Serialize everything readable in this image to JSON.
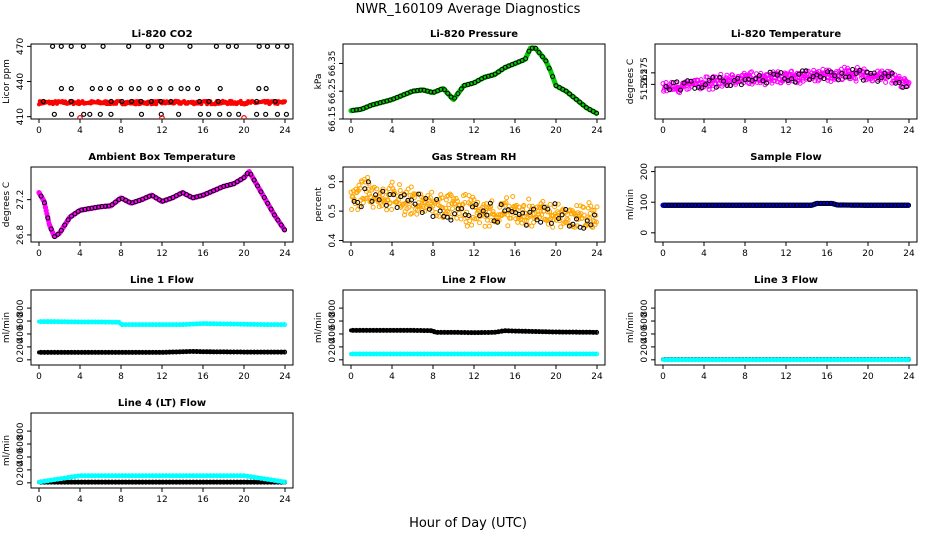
{
  "figure": {
    "title": "NWR_160109  Average Diagnostics",
    "xlabel": "Hour of Day (UTC)"
  },
  "colors": {
    "co2_main": "#ff0000",
    "pressure": "#00cc00",
    "temperature": "#ff00ff",
    "rh": "#ffa500",
    "sample_flow": "#0000cc",
    "flow_primary": "#00ffff",
    "flow_secondary": "#000000"
  },
  "chart_data": [
    {
      "type": "scatter",
      "title": "Li-820 CO2",
      "ylabel": "Licor ppm",
      "xlim": [
        0,
        24
      ],
      "xticks": [
        0,
        4,
        8,
        12,
        16,
        20,
        24
      ],
      "ylim": [
        408,
        472
      ],
      "yticks": [
        410,
        440,
        470
      ],
      "series": [
        {
          "name": "",
          "color": "#ff0000",
          "style": "dense-band",
          "x": [
            0,
            24
          ],
          "y": [
            422,
            422
          ],
          "spread": 1.5
        },
        {
          "name": "",
          "color": "#000000",
          "style": "open-circle-levels",
          "levels": [
            470,
            434,
            423,
            412
          ]
        },
        {
          "name": "",
          "color": "#ff0000",
          "style": "open-circle",
          "x": [
            4,
            12,
            20
          ],
          "y": [
            409,
            409,
            409
          ]
        }
      ]
    },
    {
      "type": "line",
      "title": "Li-820 Pressure",
      "ylabel": "kPa",
      "xlim": [
        0,
        24
      ],
      "xticks": [
        0,
        4,
        8,
        12,
        16,
        20,
        24
      ],
      "ylim": [
        66.15,
        66.42
      ],
      "yticks": [
        66.15,
        66.25,
        66.35
      ],
      "series": [
        {
          "name": "",
          "color": "#00cc00",
          "x": [
            0,
            1,
            2,
            3,
            4,
            5,
            6,
            7,
            8,
            9,
            10,
            11,
            12,
            13,
            14,
            15,
            16,
            17,
            17.5,
            18,
            19,
            19.5,
            20,
            21,
            22,
            23,
            24
          ],
          "y": [
            66.18,
            66.185,
            66.2,
            66.21,
            66.22,
            66.235,
            66.25,
            66.255,
            66.245,
            66.26,
            66.22,
            66.27,
            66.28,
            66.3,
            66.31,
            66.335,
            66.35,
            66.365,
            66.405,
            66.405,
            66.36,
            66.32,
            66.27,
            66.25,
            66.22,
            66.19,
            66.17
          ]
        }
      ]
    },
    {
      "type": "scatter",
      "title": "Li-820 Temperature",
      "ylabel": "degrees C",
      "xlim": [
        0,
        24
      ],
      "xticks": [
        0,
        4,
        8,
        12,
        16,
        20,
        24
      ],
      "ylim": [
        51.235,
        51.3
      ],
      "yticks": [
        51.265,
        51.275
      ],
      "series": [
        {
          "name": "",
          "color": "#ff00ff",
          "x": [
            0,
            2,
            4,
            6,
            8,
            10,
            12,
            14,
            16,
            18,
            20,
            22,
            24
          ],
          "y": [
            51.262,
            51.263,
            51.266,
            51.268,
            51.27,
            51.271,
            51.271,
            51.272,
            51.273,
            51.274,
            51.273,
            51.272,
            51.265
          ],
          "spread": 0.007
        }
      ]
    },
    {
      "type": "line",
      "title": "Ambient Box Temperature",
      "ylabel": "degrees C",
      "xlim": [
        0,
        24
      ],
      "xticks": [
        0,
        4,
        8,
        12,
        16,
        20,
        24
      ],
      "ylim": [
        26.72,
        27.57
      ],
      "yticks": [
        26.8,
        27.2
      ],
      "series": [
        {
          "name": "",
          "color": "#ff00ff",
          "x": [
            0,
            0.5,
            1,
            1.5,
            2,
            3,
            4,
            5,
            6,
            7,
            8,
            9,
            10,
            11,
            12,
            13,
            14,
            15,
            16,
            17,
            18,
            19,
            20,
            20.5,
            21,
            22,
            23,
            24
          ],
          "y": [
            27.28,
            27.18,
            26.92,
            26.78,
            26.82,
            27.0,
            27.08,
            27.1,
            27.12,
            27.13,
            27.22,
            27.16,
            27.2,
            27.25,
            27.18,
            27.22,
            27.28,
            27.22,
            27.25,
            27.3,
            27.35,
            27.38,
            27.45,
            27.52,
            27.42,
            27.22,
            27.02,
            26.85
          ]
        }
      ]
    },
    {
      "type": "scatter",
      "title": "Gas Stream RH",
      "ylabel": "percent",
      "xlim": [
        0,
        24
      ],
      "xticks": [
        0,
        4,
        8,
        12,
        16,
        20,
        24
      ],
      "ylim": [
        0.395,
        0.65
      ],
      "yticks": [
        0.4,
        0.5,
        0.6
      ],
      "series": [
        {
          "name": "",
          "color": "#ffa500",
          "x": [
            0,
            2,
            4,
            6,
            8,
            10,
            12,
            14,
            16,
            18,
            20,
            22,
            24
          ],
          "y": [
            0.55,
            0.56,
            0.545,
            0.53,
            0.52,
            0.51,
            0.5,
            0.49,
            0.495,
            0.49,
            0.485,
            0.48,
            0.48
          ],
          "spread": 0.06
        }
      ]
    },
    {
      "type": "line",
      "title": "Sample Flow",
      "ylabel": "ml/min",
      "xlim": [
        0,
        24
      ],
      "xticks": [
        0,
        4,
        8,
        12,
        16,
        20,
        24
      ],
      "ylim": [
        -30,
        215
      ],
      "yticks": [
        0,
        100,
        200
      ],
      "series": [
        {
          "name": "",
          "color": "#0000cc",
          "x": [
            0,
            4,
            8,
            12,
            14.5,
            15,
            16.5,
            17,
            20,
            24
          ],
          "y": [
            90,
            90,
            90,
            90,
            90,
            96,
            96,
            91,
            90,
            90
          ]
        }
      ]
    },
    {
      "type": "scatter",
      "title": "Line 1 Flow",
      "ylabel": "ml/min",
      "xlim": [
        0,
        24
      ],
      "xticks": [
        0,
        4,
        8,
        12,
        16,
        20,
        24
      ],
      "ylim": [
        -80,
        1080
      ],
      "yticks": [
        0,
        200,
        400,
        600,
        800
      ],
      "series": [
        {
          "name": "",
          "color": "#00ffff",
          "x": [
            0,
            2,
            4,
            6,
            7.8,
            8,
            10,
            12,
            14,
            16,
            18,
            20,
            22,
            24
          ],
          "y": [
            590,
            590,
            585,
            585,
            580,
            545,
            545,
            545,
            545,
            560,
            555,
            550,
            545,
            545
          ]
        },
        {
          "name": "",
          "color": "#000000",
          "x": [
            0,
            4,
            8,
            12,
            15,
            16,
            20,
            24
          ],
          "y": [
            115,
            115,
            115,
            115,
            130,
            125,
            120,
            120
          ]
        }
      ]
    },
    {
      "type": "scatter",
      "title": "Line 2 Flow",
      "ylabel": "ml/min",
      "xlim": [
        0,
        24
      ],
      "xticks": [
        0,
        4,
        8,
        12,
        16,
        20,
        24
      ],
      "ylim": [
        -80,
        1080
      ],
      "yticks": [
        0,
        200,
        400,
        600,
        800
      ],
      "series": [
        {
          "name": "",
          "color": "#000000",
          "x": [
            0,
            2,
            4,
            6,
            8,
            8.2,
            10,
            12,
            14,
            15,
            16,
            20,
            24
          ],
          "y": [
            455,
            455,
            455,
            455,
            450,
            425,
            425,
            420,
            425,
            450,
            445,
            430,
            425
          ]
        },
        {
          "name": "",
          "color": "#00ffff",
          "x": [
            0,
            4,
            8,
            12,
            16,
            20,
            24
          ],
          "y": [
            90,
            90,
            90,
            90,
            90,
            90,
            90
          ]
        }
      ]
    },
    {
      "type": "scatter",
      "title": "Line 3 Flow",
      "ylabel": "ml/min",
      "xlim": [
        0,
        24
      ],
      "xticks": [
        0,
        4,
        8,
        12,
        16,
        20,
        24
      ],
      "ylim": [
        -80,
        1080
      ],
      "yticks": [
        0,
        200,
        400,
        600,
        800
      ],
      "series": [
        {
          "name": "",
          "color": "#000000",
          "x": [
            0,
            4,
            8,
            12,
            16,
            20,
            24
          ],
          "y": [
            5,
            5,
            5,
            5,
            5,
            5,
            5
          ]
        },
        {
          "name": "",
          "color": "#00ffff",
          "x": [
            0,
            4,
            8,
            12,
            16,
            20,
            24
          ],
          "y": [
            2,
            2,
            2,
            2,
            2,
            2,
            2
          ]
        }
      ]
    },
    {
      "type": "scatter",
      "title": "Line 4 (LT) Flow",
      "ylabel": "ml/min",
      "xlim": [
        0,
        24
      ],
      "xticks": [
        0,
        4,
        8,
        12,
        16,
        20,
        24
      ],
      "ylim": [
        -80,
        1080
      ],
      "yticks": [
        0,
        200,
        400,
        600,
        800
      ],
      "series": [
        {
          "name": "",
          "color": "#000000",
          "x": [
            0,
            4,
            8,
            12,
            16,
            20,
            24
          ],
          "y": [
            10,
            10,
            10,
            10,
            10,
            10,
            10
          ]
        },
        {
          "name": "",
          "color": "#00ffff",
          "x": [
            0,
            4,
            12,
            20,
            24
          ],
          "y": [
            12,
            110,
            110,
            110,
            12
          ]
        }
      ]
    }
  ]
}
